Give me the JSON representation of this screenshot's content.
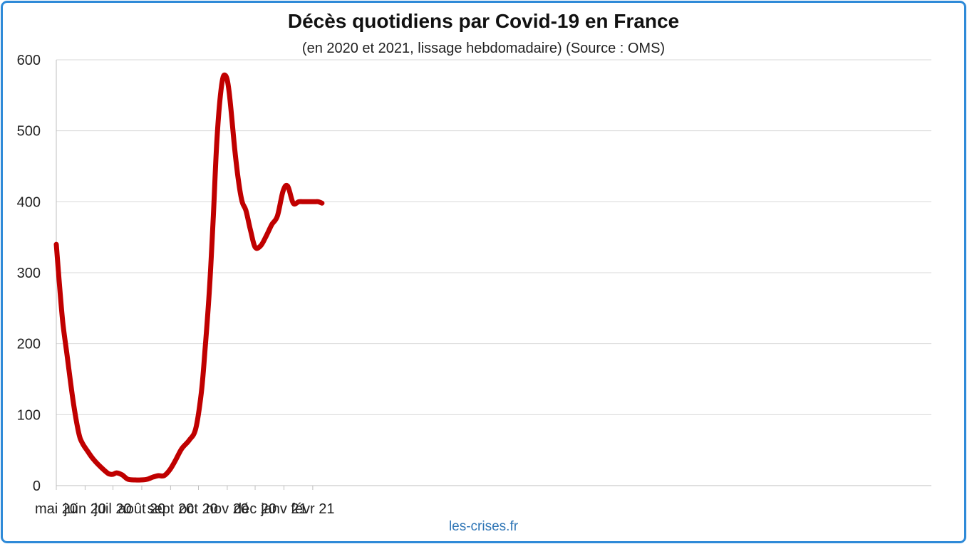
{
  "chart_data": {
    "type": "line",
    "title": "Décès quotidiens par Covid-19 en France",
    "subtitle": "(en 2020 et 2021, lissage hebdomadaire) (Source : OMS)",
    "xlabel": "",
    "ylabel": "",
    "ylim": [
      0,
      600
    ],
    "yticks": [
      0,
      100,
      200,
      300,
      400,
      500,
      600
    ],
    "xticks": [
      "mai 20",
      "juin 20",
      "juil 20",
      "août 20",
      "sept 20",
      "oct 20",
      "nov 20",
      "déc 20",
      "janv 21",
      "févr 21"
    ],
    "grid": true,
    "legend": "none",
    "series": [
      {
        "color": "#c00000",
        "x": [
          "2020-05-01",
          "2020-05-04",
          "2020-05-08",
          "2020-05-13",
          "2020-05-19",
          "2020-05-25",
          "2020-05-29",
          "2020-06-04",
          "2020-06-10",
          "2020-06-18",
          "2020-06-26",
          "2020-07-01",
          "2020-07-05",
          "2020-07-11",
          "2020-07-17",
          "2020-07-25",
          "2020-07-31",
          "2020-08-07",
          "2020-08-13",
          "2020-08-19",
          "2020-08-25",
          "2020-08-31",
          "2020-09-06",
          "2020-09-13",
          "2020-09-21",
          "2020-09-28",
          "2020-10-04",
          "2020-10-08",
          "2020-10-13",
          "2020-10-17",
          "2020-10-21",
          "2020-10-26",
          "2020-10-30",
          "2020-11-03",
          "2020-11-09",
          "2020-11-13",
          "2020-11-17",
          "2020-11-21",
          "2020-11-26",
          "2020-12-01",
          "2020-12-07",
          "2020-12-13",
          "2020-12-19",
          "2020-12-25",
          "2020-12-31",
          "2021-01-05",
          "2021-01-11",
          "2021-01-17",
          "2021-01-23",
          "2021-01-29",
          "2021-02-03",
          "2021-02-07",
          "2021-02-11"
        ],
        "values": [
          340,
          290,
          230,
          180,
          120,
          75,
          60,
          48,
          37,
          26,
          17,
          16,
          18,
          15,
          9,
          8,
          8,
          9,
          12,
          14,
          14,
          22,
          35,
          52,
          64,
          80,
          130,
          190,
          280,
          380,
          490,
          565,
          578,
          555,
          475,
          430,
          400,
          388,
          360,
          336,
          338,
          352,
          368,
          380,
          415,
          422,
          398,
          400,
          400,
          400,
          400,
          400,
          398
        ]
      }
    ],
    "source": "les-crises.fr",
    "source_color": "#2e75b6"
  }
}
